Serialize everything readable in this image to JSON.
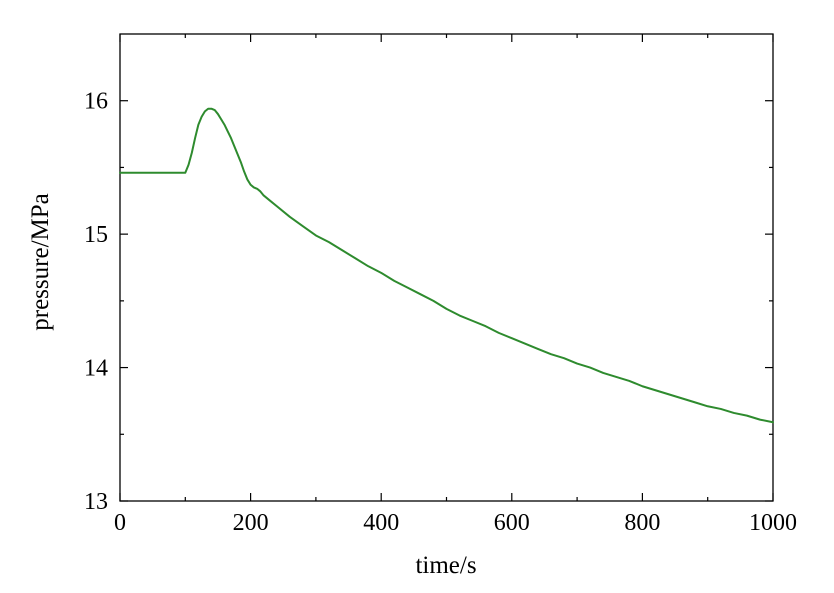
{
  "chart_data": {
    "type": "line",
    "title": "",
    "xlabel": "time/s",
    "ylabel": "pressure/MPa",
    "xlim": [
      0,
      1000
    ],
    "ylim": [
      13,
      16.5
    ],
    "x_ticks": [
      0,
      200,
      400,
      600,
      800,
      1000
    ],
    "y_ticks": [
      13,
      14,
      15,
      16
    ],
    "x_minor_ticks": [
      100,
      300,
      500,
      700,
      900
    ],
    "y_minor_ticks": [
      13.5,
      14.5,
      15.5
    ],
    "grid": false,
    "legend": "none",
    "line_color": "#2e8b2e",
    "series": [
      {
        "x": [
          0,
          50,
          100,
          105,
          110,
          115,
          120,
          125,
          130,
          135,
          140,
          145,
          150,
          155,
          160,
          165,
          170,
          175,
          180,
          185,
          190,
          195,
          200,
          205,
          210,
          215,
          220,
          230,
          240,
          260,
          280,
          300,
          320,
          340,
          360,
          380,
          400,
          420,
          440,
          460,
          480,
          500,
          520,
          540,
          560,
          580,
          600,
          620,
          640,
          660,
          680,
          700,
          720,
          740,
          760,
          780,
          800,
          820,
          840,
          860,
          880,
          900,
          920,
          940,
          960,
          980,
          1000
        ],
        "y": [
          15.46,
          15.46,
          15.46,
          15.52,
          15.61,
          15.72,
          15.82,
          15.88,
          15.92,
          15.94,
          15.94,
          15.93,
          15.9,
          15.86,
          15.82,
          15.77,
          15.72,
          15.66,
          15.6,
          15.54,
          15.47,
          15.41,
          15.37,
          15.35,
          15.34,
          15.32,
          15.29,
          15.25,
          15.21,
          15.13,
          15.06,
          14.99,
          14.94,
          14.88,
          14.82,
          14.76,
          14.71,
          14.65,
          14.6,
          14.55,
          14.5,
          14.44,
          14.39,
          14.35,
          14.31,
          14.26,
          14.22,
          14.18,
          14.14,
          14.1,
          14.07,
          14.03,
          14.0,
          13.96,
          13.93,
          13.9,
          13.86,
          13.83,
          13.8,
          13.77,
          13.74,
          13.71,
          13.69,
          13.66,
          13.64,
          13.61,
          13.59
        ]
      }
    ]
  }
}
